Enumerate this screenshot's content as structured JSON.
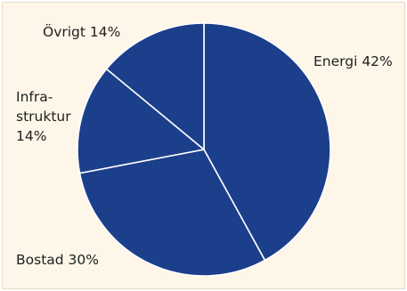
{
  "chart_data": {
    "type": "pie",
    "title": "",
    "slices": [
      {
        "label": "Energi",
        "value": 42,
        "value_label": "42%"
      },
      {
        "label": "Bostad",
        "value": 30,
        "value_label": "30%"
      },
      {
        "label": "Infra-\nstruktur",
        "value": 14,
        "value_label": "14%"
      },
      {
        "label": "Övrigt",
        "value": 14,
        "value_label": "14%"
      }
    ],
    "colors": {
      "slice": "#1c3f8c",
      "separator": "#ffffff",
      "background": "#fdf6e9",
      "text": "#1f1f1f"
    },
    "label_texts": [
      "Energi 42%",
      "Bostad 30%",
      "Infra-",
      "struktur",
      "14%",
      "Övrigt 14%"
    ]
  }
}
